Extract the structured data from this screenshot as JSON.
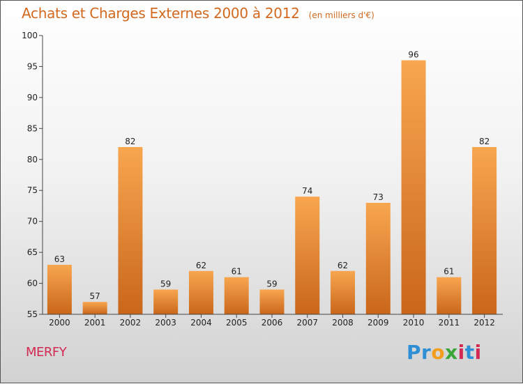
{
  "header": {
    "title": "Achats et Charges Externes 2000 à 2012",
    "unit": "(en milliers d'€)"
  },
  "footer": {
    "commune": "MERFY",
    "brand_letters": [
      {
        "char": "P",
        "color": "#2e8fd6"
      },
      {
        "char": "r",
        "color": "#2e8fd6"
      },
      {
        "char": "o",
        "color": "#f29e1c"
      },
      {
        "char": "x",
        "color": "#3aa63a"
      },
      {
        "char": "i",
        "color": "#d22a52"
      },
      {
        "char": "t",
        "color": "#2e8fd6"
      },
      {
        "char": "i",
        "color": "#d22a52"
      }
    ]
  },
  "chart_data": {
    "type": "bar",
    "title": "Achats et Charges Externes 2000 à 2012",
    "subtitle": "(en milliers d'€)",
    "categories": [
      "2000",
      "2001",
      "2002",
      "2003",
      "2004",
      "2005",
      "2006",
      "2007",
      "2008",
      "2009",
      "2010",
      "2011",
      "2012"
    ],
    "values": [
      63,
      57,
      82,
      59,
      62,
      61,
      59,
      74,
      62,
      73,
      96,
      61,
      82
    ],
    "ylim": [
      55,
      100
    ],
    "yticks": [
      55,
      60,
      65,
      70,
      75,
      80,
      85,
      90,
      95,
      100
    ],
    "bar_color_light": "#f8a650",
    "bar_color_dark": "#c9661a",
    "grid": false,
    "data_labels": true
  }
}
